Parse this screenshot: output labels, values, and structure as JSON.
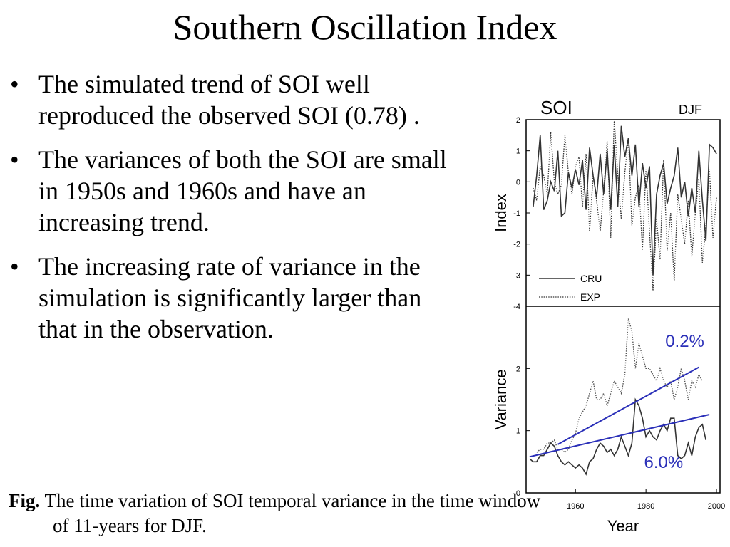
{
  "title": "Southern Oscillation Index",
  "bullets": [
    "The simulated trend of SOI well reproduced the observed SOI (0.78) .",
    "The variances of both the SOI are small in 1950s and 1960s and  have an increasing trend.",
    "The increasing rate of variance in the simulation is significantly larger than that in the observation."
  ],
  "bullet_symbol": "•",
  "caption": {
    "label": "Fig.",
    "text": "The time variation of SOI temporal variance in the time window of 11-years for DJF."
  },
  "chart_data": [
    {
      "type": "line",
      "title": "SOI",
      "subtitle": "DJF",
      "ylabel": "Index",
      "ylim": [
        -4,
        2
      ],
      "yticks": [
        2,
        1,
        0,
        -1,
        -2,
        -3,
        -4
      ],
      "xlim": [
        1946,
        2001
      ],
      "legend_position": "bottom-left",
      "grid": false,
      "series": [
        {
          "name": "CRU",
          "style": "solid",
          "color": "#333333",
          "x": [
            1948,
            1949,
            1950,
            1951,
            1952,
            1953,
            1954,
            1955,
            1956,
            1957,
            1958,
            1959,
            1960,
            1961,
            1962,
            1963,
            1964,
            1965,
            1966,
            1967,
            1968,
            1969,
            1970,
            1971,
            1972,
            1973,
            1974,
            1975,
            1976,
            1977,
            1978,
            1979,
            1980,
            1981,
            1982,
            1983,
            1984,
            1985,
            1986,
            1987,
            1988,
            1989,
            1990,
            1991,
            1992,
            1993,
            1994,
            1995,
            1996,
            1997,
            1998,
            1999,
            2000
          ],
          "values": [
            -0.8,
            0.2,
            1.5,
            -0.9,
            -0.6,
            0.0,
            -0.3,
            1.0,
            -1.1,
            -1.0,
            0.3,
            -0.2,
            0.4,
            -0.1,
            0.7,
            -0.9,
            1.1,
            0.2,
            -0.5,
            0.9,
            -0.4,
            1.0,
            -0.9,
            1.2,
            -0.8,
            1.8,
            0.8,
            1.4,
            0.2,
            1.2,
            -0.8,
            0.6,
            -0.2,
            0.5,
            -3.0,
            -0.4,
            0.2,
            0.6,
            -0.7,
            -0.2,
            0.2,
            1.1,
            -0.5,
            0.0,
            -1.1,
            -0.2,
            -1.0,
            1.0,
            -0.6,
            -1.9,
            1.2,
            1.1,
            0.9
          ]
        },
        {
          "name": "EXP",
          "style": "dotted",
          "color": "#333333",
          "x": [
            1948,
            1949,
            1950,
            1951,
            1952,
            1953,
            1954,
            1955,
            1956,
            1957,
            1958,
            1959,
            1960,
            1961,
            1962,
            1963,
            1964,
            1965,
            1966,
            1967,
            1968,
            1969,
            1970,
            1971,
            1972,
            1973,
            1974,
            1975,
            1976,
            1977,
            1978,
            1979,
            1980,
            1981,
            1982,
            1983,
            1984,
            1985,
            1986,
            1987,
            1988,
            1989,
            1990,
            1991,
            1992,
            1993,
            1994,
            1995,
            1996,
            1997,
            1998,
            1999,
            2000
          ],
          "values": [
            -0.2,
            -0.6,
            0.5,
            0.2,
            -0.4,
            1.6,
            0.0,
            -0.4,
            -0.1,
            1.5,
            0.3,
            -0.4,
            0.5,
            0.8,
            -0.8,
            0.9,
            -1.6,
            0.2,
            -0.6,
            -1.6,
            -0.3,
            1.3,
            -1.8,
            2.0,
            0.2,
            -1.2,
            0.3,
            1.4,
            -1.4,
            -0.5,
            -0.1,
            -2.2,
            0.4,
            -1.6,
            -3.5,
            -1.2,
            -2.5,
            0.7,
            -2.2,
            -1.0,
            -3.2,
            -0.4,
            -1.2,
            -2.0,
            -0.6,
            -2.4,
            -1.0,
            0.1,
            -2.6,
            -1.4,
            0.4,
            -1.8,
            -0.5
          ]
        }
      ]
    },
    {
      "type": "line",
      "ylabel": "Variance",
      "xlabel": "Year",
      "ylim": [
        0,
        3
      ],
      "yticks": [
        2,
        1,
        0
      ],
      "xlim": [
        1946,
        2001
      ],
      "xticks": [
        1960,
        1980,
        2000
      ],
      "grid": false,
      "series": [
        {
          "name": "CRU variance",
          "style": "solid",
          "color": "#333333",
          "x": [
            1947,
            1948,
            1949,
            1950,
            1951,
            1952,
            1953,
            1954,
            1955,
            1956,
            1957,
            1958,
            1959,
            1960,
            1961,
            1962,
            1963,
            1964,
            1965,
            1966,
            1967,
            1968,
            1969,
            1970,
            1971,
            1972,
            1973,
            1974,
            1975,
            1976,
            1977,
            1978,
            1979,
            1980,
            1981,
            1982,
            1983,
            1984,
            1985,
            1986,
            1987,
            1988,
            1989,
            1990,
            1991,
            1992,
            1993,
            1994,
            1995,
            1996,
            1997
          ],
          "values": [
            0.55,
            0.5,
            0.5,
            0.6,
            0.6,
            0.7,
            0.8,
            0.75,
            0.6,
            0.5,
            0.45,
            0.5,
            0.45,
            0.4,
            0.45,
            0.4,
            0.3,
            0.5,
            0.55,
            0.7,
            0.8,
            0.75,
            0.65,
            0.7,
            0.6,
            0.7,
            0.9,
            0.75,
            0.6,
            0.8,
            1.5,
            1.4,
            1.2,
            0.9,
            1.0,
            0.9,
            0.85,
            1.0,
            1.1,
            1.0,
            1.2,
            1.2,
            0.6,
            0.55,
            0.6,
            0.8,
            0.6,
            0.9,
            1.05,
            1.1,
            0.85
          ]
        },
        {
          "name": "EXP variance",
          "style": "dotted",
          "color": "#555555",
          "x": [
            1949,
            1950,
            1951,
            1952,
            1953,
            1954,
            1955,
            1956,
            1957,
            1958,
            1959,
            1960,
            1961,
            1962,
            1963,
            1964,
            1965,
            1966,
            1967,
            1968,
            1969,
            1970,
            1971,
            1972,
            1973,
            1974,
            1975,
            1976,
            1977,
            1978,
            1979,
            1980,
            1981,
            1982,
            1983,
            1984,
            1985,
            1986,
            1987,
            1988,
            1989,
            1990,
            1991,
            1992,
            1993,
            1994,
            1995,
            1996
          ],
          "values": [
            0.65,
            0.7,
            0.7,
            0.8,
            0.8,
            0.85,
            0.7,
            0.7,
            0.65,
            0.7,
            0.85,
            0.95,
            1.2,
            1.3,
            1.4,
            1.6,
            1.8,
            1.5,
            1.5,
            1.6,
            1.4,
            1.6,
            1.8,
            1.7,
            1.6,
            1.9,
            2.8,
            2.6,
            2.0,
            2.4,
            2.2,
            2.0,
            2.0,
            1.9,
            1.8,
            2.0,
            1.8,
            1.7,
            1.8,
            1.5,
            1.7,
            2.0,
            1.8,
            1.5,
            1.8,
            1.7,
            1.9,
            1.8
          ]
        },
        {
          "name": "EXP trend",
          "style": "trend",
          "color": "#2a2fb8",
          "x": [
            1955,
            1995
          ],
          "values": [
            0.78,
            2.02
          ]
        },
        {
          "name": "CRU trend",
          "style": "trend",
          "color": "#2a2fb8",
          "x": [
            1947,
            1998
          ],
          "values": [
            0.58,
            1.26
          ]
        }
      ],
      "annotations": [
        {
          "text": "0.2%",
          "x": 1991,
          "y": 2.35,
          "color": "#2a2fb8"
        },
        {
          "text": "6.0%",
          "x": 1985,
          "y": 0.4,
          "color": "#2a2fb8"
        }
      ]
    }
  ]
}
